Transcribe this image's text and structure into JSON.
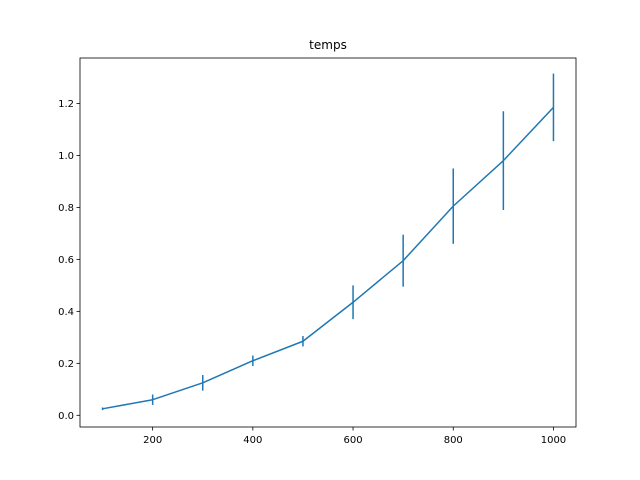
{
  "chart_data": {
    "type": "line",
    "title": "temps",
    "xlabel": "",
    "ylabel": "",
    "xlim": [
      55,
      1045
    ],
    "ylim": [
      -0.045,
      1.375
    ],
    "x_ticks": [
      200,
      400,
      600,
      800,
      1000
    ],
    "y_ticks": [
      0.0,
      0.2,
      0.4,
      0.6,
      0.8,
      1.0,
      1.2
    ],
    "y_tick_labels": [
      "0.0",
      "0.2",
      "0.4",
      "0.6",
      "0.8",
      "1.0",
      "1.2"
    ],
    "grid": false,
    "legend": "none",
    "series": [
      {
        "color": "#1f77b4",
        "x": [
          100,
          200,
          300,
          400,
          500,
          600,
          700,
          800,
          900,
          1000
        ],
        "y": [
          0.025,
          0.06,
          0.125,
          0.21,
          0.285,
          0.435,
          0.595,
          0.805,
          0.98,
          1.185
        ],
        "yerr": [
          0.005,
          0.02,
          0.03,
          0.02,
          0.02,
          0.065,
          0.1,
          0.145,
          0.19,
          0.13
        ]
      }
    ]
  }
}
